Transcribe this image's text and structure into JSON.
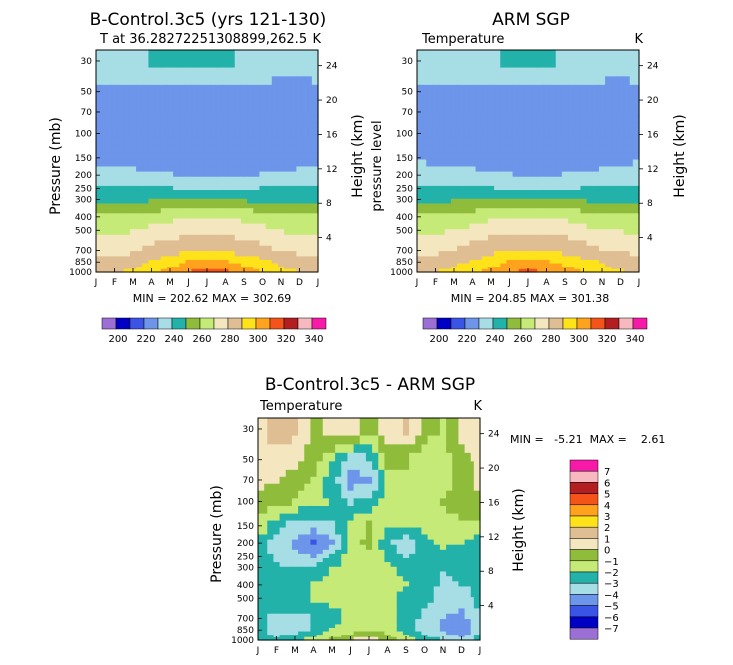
{
  "colors": {
    "temp_palette": [
      "#9c6fd6",
      "#0000c4",
      "#3a55e6",
      "#6d95ea",
      "#a7dee6",
      "#22b2aa",
      "#8fbd3b",
      "#c5ea77",
      "#f4e7c0",
      "#dfbe93",
      "#ffe31a",
      "#ffa21e",
      "#f4541a",
      "#b31f20",
      "#f7b9bf",
      "#f71aa8"
    ],
    "diff_palette": [
      "#f71aa8",
      "#f7b9bf",
      "#b31f20",
      "#f4541a",
      "#ffa21e",
      "#ffe31a",
      "#dfbe93",
      "#f4e7c0",
      "#8fbd3b",
      "#c5ea77",
      "#22b2aa",
      "#a7dee6",
      "#6d95ea",
      "#3a55e6",
      "#0000c4",
      "#9c6fd6"
    ]
  },
  "chart_data": [
    {
      "type": "heatmap",
      "title": "B-Control.3c5 (yrs 121-130)",
      "subtitle_left": "T at 36.28272251308899,262.5",
      "units": "K",
      "xlabel": "",
      "ylabel": "Pressure (mb)",
      "ylabel_right": "Height (km)",
      "x_ticks": [
        "J",
        "F",
        "M",
        "A",
        "M",
        "J",
        "J",
        "A",
        "S",
        "O",
        "N",
        "D",
        "J"
      ],
      "y_ticks": [
        "30",
        "50",
        "70",
        "100",
        "150",
        "200",
        "250",
        "300",
        "400",
        "500",
        "700",
        "850",
        "1000"
      ],
      "y_ticks_right": [
        "24",
        "20",
        "16",
        "12",
        "8",
        "4"
      ],
      "stats": "MIN = 202.62  MAX = 302.69",
      "min": 202.62,
      "max": 302.69,
      "ylim": [
        1000,
        25
      ],
      "rows": [
        [
          224,
          224,
          226,
          230,
          231,
          232,
          232,
          231,
          229,
          227,
          225,
          224,
          224
        ],
        [
          218,
          218,
          217,
          216,
          216,
          216,
          215,
          216,
          216,
          217,
          217,
          216,
          218
        ],
        [
          217,
          215,
          214,
          213,
          212,
          212,
          212,
          212,
          213,
          214,
          215,
          216,
          217
        ],
        [
          216,
          215,
          214,
          213,
          212,
          211,
          211,
          211,
          212,
          213,
          214,
          215,
          216
        ],
        [
          218,
          218,
          217,
          215,
          213,
          212,
          211,
          212,
          212,
          213,
          215,
          217,
          218
        ],
        [
          223,
          222,
          222,
          221,
          220,
          219,
          219,
          219,
          219,
          220,
          221,
          222,
          223
        ],
        [
          231,
          231,
          231,
          230,
          230,
          229,
          229,
          229,
          229,
          230,
          230,
          231,
          231
        ],
        [
          238,
          238,
          239,
          240,
          240,
          241,
          241,
          241,
          240,
          239,
          238,
          238,
          238
        ],
        [
          250,
          250,
          251,
          254,
          256,
          258,
          258,
          258,
          256,
          254,
          252,
          250,
          250
        ],
        [
          258,
          258,
          260,
          263,
          266,
          268,
          268,
          268,
          266,
          263,
          260,
          259,
          258
        ],
        [
          266,
          266,
          268,
          272,
          275,
          278,
          278,
          277,
          275,
          272,
          268,
          267,
          266
        ],
        [
          274,
          273,
          276,
          280,
          286,
          290,
          291,
          290,
          287,
          283,
          278,
          275,
          274
        ],
        [
          278,
          278,
          281,
          286,
          293,
          299,
          302,
          300,
          295,
          288,
          282,
          279,
          278
        ]
      ]
    },
    {
      "type": "heatmap",
      "title": "ARM SGP",
      "subtitle_left": "Temperature",
      "units": "K",
      "ylabel": "pressure level",
      "ylabel_right": "Height (km)",
      "x_ticks": [
        "J",
        "F",
        "M",
        "A",
        "M",
        "J",
        "J",
        "A",
        "S",
        "O",
        "N",
        "D",
        "J"
      ],
      "y_ticks": [
        "30",
        "50",
        "70",
        "100",
        "150",
        "200",
        "250",
        "300",
        "400",
        "500",
        "700",
        "850",
        "1000"
      ],
      "y_ticks_right": [
        "24",
        "20",
        "16",
        "12",
        "8",
        "4"
      ],
      "stats": "MIN = 204.85  MAX = 301.38",
      "min": 204.85,
      "max": 301.38,
      "ylim": [
        1000,
        25
      ],
      "rows": [
        [
          225,
          226,
          227,
          228,
          229,
          231,
          232,
          231,
          229,
          227,
          226,
          225,
          225
        ],
        [
          218,
          219,
          219,
          218,
          217,
          216,
          216,
          216,
          216,
          217,
          217,
          217,
          218
        ],
        [
          217,
          216,
          215,
          214,
          214,
          213,
          213,
          213,
          214,
          215,
          215,
          216,
          217
        ],
        [
          216,
          216,
          215,
          214,
          213,
          212,
          212,
          212,
          212,
          213,
          214,
          215,
          216
        ],
        [
          219,
          218,
          218,
          217,
          215,
          213,
          212,
          212,
          213,
          214,
          216,
          217,
          219
        ],
        [
          223,
          223,
          223,
          222,
          221,
          220,
          219,
          219,
          220,
          221,
          222,
          222,
          223
        ],
        [
          231,
          231,
          231,
          230,
          230,
          229,
          229,
          229,
          229,
          230,
          230,
          231,
          231
        ],
        [
          238,
          239,
          240,
          241,
          241,
          242,
          242,
          242,
          241,
          240,
          239,
          238,
          238
        ],
        [
          251,
          251,
          252,
          254,
          257,
          259,
          259,
          259,
          257,
          254,
          252,
          251,
          251
        ],
        [
          259,
          259,
          261,
          264,
          267,
          269,
          269,
          269,
          267,
          264,
          261,
          260,
          259
        ],
        [
          267,
          267,
          269,
          273,
          276,
          279,
          279,
          278,
          276,
          273,
          269,
          268,
          267
        ],
        [
          274,
          274,
          277,
          281,
          286,
          290,
          291,
          290,
          287,
          283,
          279,
          276,
          274
        ],
        [
          278,
          279,
          282,
          287,
          293,
          298,
          301,
          299,
          295,
          289,
          283,
          280,
          278
        ]
      ]
    },
    {
      "type": "heatmap",
      "title": "B-Control.3c5 - ARM SGP",
      "subtitle_left": "Temperature",
      "units": "K",
      "ylabel": "Pressure (mb)",
      "ylabel_right": "Height (km)",
      "x_ticks": [
        "J",
        "F",
        "M",
        "A",
        "M",
        "J",
        "J",
        "A",
        "S",
        "O",
        "N",
        "D",
        "J"
      ],
      "y_ticks": [
        "30",
        "50",
        "70",
        "100",
        "150",
        "200",
        "250",
        "300",
        "400",
        "500",
        "700",
        "850",
        "1000"
      ],
      "y_ticks_right": [
        "24",
        "20",
        "16",
        "12",
        "8",
        "4"
      ],
      "stats": "MIN =   -5.21  MAX =    2.61",
      "min": -5.21,
      "max": 2.61,
      "ylim": [
        1000,
        25
      ],
      "rows": [
        [
          0.5,
          1.8,
          1.2,
          -0.5,
          0.8,
          0.6,
          -0.8,
          0.4,
          1.2,
          -0.6,
          -1.2,
          0.5,
          0.3
        ],
        [
          0.3,
          0.4,
          0.5,
          -0.4,
          -1.8,
          -3.2,
          -3.0,
          -0.6,
          -0.8,
          -1.5,
          -1.4,
          -0.4,
          0.2
        ],
        [
          0.2,
          0.0,
          -0.4,
          -1.2,
          -2.5,
          -4.6,
          -4.3,
          -1.8,
          -1.2,
          -1.8,
          -1.6,
          -0.6,
          0.1
        ],
        [
          -0.4,
          -0.6,
          -1.2,
          -1.6,
          -2.2,
          -3.1,
          -2.8,
          -1.2,
          -1.5,
          -1.7,
          -1.0,
          -0.3,
          -0.2
        ],
        [
          -1.5,
          -2.6,
          -3.4,
          -3.6,
          -3.2,
          -1.6,
          -1.0,
          -1.8,
          -2.0,
          -1.9,
          -1.4,
          -1.2,
          -1.3
        ],
        [
          -2.4,
          -3.6,
          -4.2,
          -5.1,
          -4.3,
          -1.2,
          -0.8,
          -2.8,
          -3.6,
          -2.2,
          -1.8,
          -2.0,
          -2.4
        ],
        [
          -2.6,
          -3.2,
          -3.8,
          -4.1,
          -3.0,
          -1.4,
          -1.2,
          -2.2,
          -3.2,
          -2.6,
          -2.4,
          -2.6,
          -2.7
        ],
        [
          -2.4,
          -2.8,
          -3.0,
          -2.8,
          -2.0,
          -1.6,
          -1.4,
          -1.8,
          -2.2,
          -2.8,
          -3.0,
          -2.8,
          -2.6
        ],
        [
          -2.5,
          -2.6,
          -2.4,
          -2.0,
          -1.6,
          -1.5,
          -1.6,
          -1.7,
          -2.0,
          -2.6,
          -3.2,
          -3.0,
          -2.6
        ],
        [
          -2.5,
          -2.4,
          -2.2,
          -2.0,
          -1.8,
          -1.6,
          -1.6,
          -1.8,
          -2.2,
          -2.8,
          -3.4,
          -3.6,
          -2.8
        ],
        [
          -2.8,
          -3.2,
          -3.4,
          -3.0,
          -2.4,
          -1.8,
          -1.6,
          -1.8,
          -2.4,
          -3.2,
          -4.0,
          -4.3,
          -3.2
        ],
        [
          -2.8,
          -3.5,
          -3.6,
          -3.0,
          -2.0,
          -1.5,
          -1.2,
          -1.6,
          -2.5,
          -3.6,
          -4.2,
          -5.0,
          -3.4
        ],
        [
          -2.2,
          -2.8,
          -2.4,
          -1.5,
          -0.8,
          -0.3,
          0.6,
          -0.4,
          -1.6,
          -2.6,
          -3.2,
          -3.8,
          -2.6
        ]
      ]
    }
  ],
  "temp_legend_labels": [
    "200",
    "220",
    "240",
    "260",
    "280",
    "300",
    "320",
    "340"
  ],
  "diff_legend_labels": [
    "7",
    "6",
    "5",
    "4",
    "3",
    "2",
    "1",
    "0",
    "−1",
    "−2",
    "−3",
    "−4",
    "−5",
    "−6",
    "−7"
  ]
}
